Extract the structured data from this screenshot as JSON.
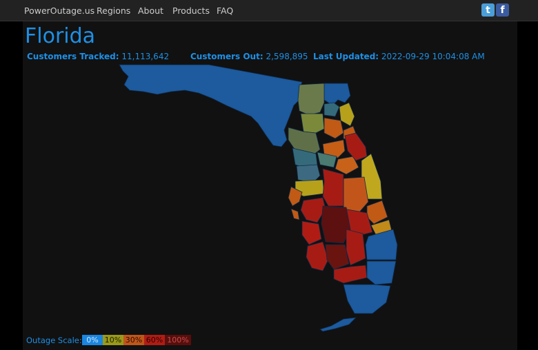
{
  "nav": {
    "brand": "PowerOutage.us",
    "items": [
      "Regions",
      "About",
      "Products",
      "FAQ"
    ]
  },
  "social": {
    "twitter": "t",
    "facebook": "f"
  },
  "page": {
    "title": "Florida",
    "customers_tracked_label": "Customers Tracked:",
    "customers_tracked_value": "11,113,642",
    "customers_out_label": "Customers Out:",
    "customers_out_value": "2,598,895",
    "last_updated_label": "Last Updated:",
    "last_updated_value": "2022-09-29 10:04:08 AM"
  },
  "map": {
    "state": "Florida",
    "regions": {
      "panhandle": "0-10%",
      "northeast_coast": "0-10%",
      "north_central": "10%",
      "central_east": "60%",
      "central": "30%",
      "tampa_bay": "10-30%",
      "southwest": "60-100%",
      "south_inland": "60%",
      "southeast": "0%",
      "keys": "0%"
    }
  },
  "scale": {
    "label": "Outage Scale:",
    "levels": [
      {
        "label": "0%",
        "color": "#1a86e0",
        "text": "#9ad0ff"
      },
      {
        "label": "10%",
        "color": "#9a9a1a",
        "text": "#2a2a00"
      },
      {
        "label": "30%",
        "color": "#c0561a",
        "text": "#3a1000"
      },
      {
        "label": "60%",
        "color": "#b01c14",
        "text": "#2a0000"
      },
      {
        "label": "100%",
        "color": "#5a0e0c",
        "text": "#c05050"
      }
    ]
  },
  "colors": {
    "accent": "#1e90e6",
    "blue": "#1d5a9e",
    "olive": "#6b7a4a",
    "teal": "#356a7a",
    "yellow": "#b7a11a",
    "orange": "#c05a14",
    "red": "#a61c14",
    "dark_red": "#5c1010"
  }
}
